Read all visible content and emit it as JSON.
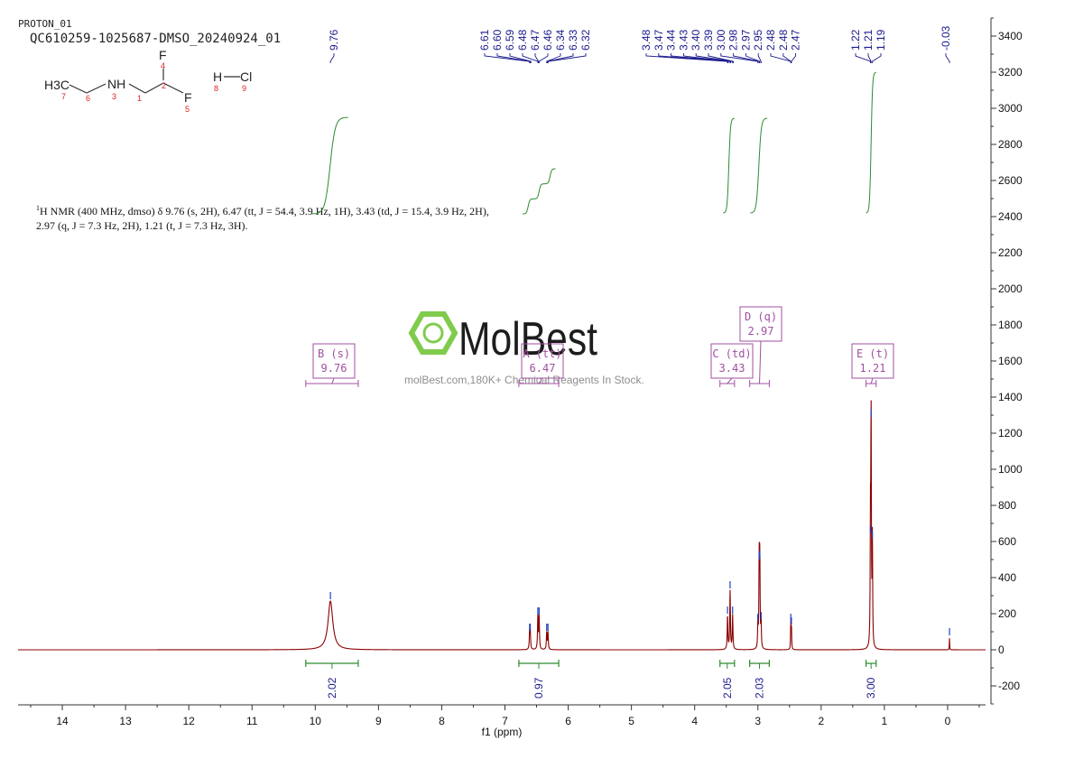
{
  "header": {
    "line1": "PROTON_01",
    "line2": "QC610259-1025687-DMSO_20240924_01"
  },
  "structure": {
    "atoms": {
      "h3c": "H3C",
      "nh": "NH",
      "f_top": "F",
      "f_bottom": "F",
      "h": "H",
      "cl": "Cl"
    },
    "atom_numbers": [
      "7",
      "6",
      "3",
      "1",
      "2",
      "4",
      "5",
      "8",
      "9"
    ]
  },
  "description": {
    "line1": "1H NMR (400 MHz, dmso) δ 9.76 (s, 2H), 6.47 (tt, J = 54.4, 3.9 Hz, 1H), 3.43 (td, J = 15.4, 3.9 Hz, 2H),",
    "line2": "2.97 (q, J = 7.3 Hz, 2H), 1.21 (t, J = 7.3 Hz, 3H)."
  },
  "watermark": {
    "brand": "MolBest",
    "tagline": "molBest.com,180K+ Chemical Reagents In Stock."
  },
  "colors": {
    "spectrum": "#8b0000",
    "integral": "#2e8b2e",
    "label": "#1a1a8c",
    "multiplet_box": "#a050a0",
    "logo_green": "#7ac943"
  },
  "chart_data": {
    "type": "line",
    "xlabel": "f1 (ppm)",
    "x_range": [
      14.7,
      -0.6
    ],
    "x_reversed": true,
    "y_range": [
      -300,
      3500
    ],
    "x_ticks": [
      14,
      13,
      12,
      11,
      10,
      9,
      8,
      7,
      6,
      5,
      4,
      3,
      2,
      1,
      0
    ],
    "y_ticks": [
      3400,
      3200,
      3000,
      2800,
      2600,
      2400,
      2200,
      2000,
      1800,
      1600,
      1400,
      1200,
      1000,
      800,
      600,
      400,
      200,
      0,
      -200
    ],
    "peaks": [
      {
        "ppm": 9.76,
        "height": 270,
        "width": 0.045
      },
      {
        "ppm": 6.61,
        "height": 95,
        "width": 0.006
      },
      {
        "ppm": 6.6,
        "height": 95,
        "width": 0.006
      },
      {
        "ppm": 6.48,
        "height": 185,
        "width": 0.006
      },
      {
        "ppm": 6.46,
        "height": 185,
        "width": 0.006
      },
      {
        "ppm": 6.34,
        "height": 95,
        "width": 0.006
      },
      {
        "ppm": 6.32,
        "height": 95,
        "width": 0.006
      },
      {
        "ppm": 3.48,
        "height": 190,
        "width": 0.006
      },
      {
        "ppm": 3.44,
        "height": 330,
        "width": 0.006
      },
      {
        "ppm": 3.4,
        "height": 190,
        "width": 0.006
      },
      {
        "ppm": 3.0,
        "height": 150,
        "width": 0.005
      },
      {
        "ppm": 2.98,
        "height": 490,
        "width": 0.005
      },
      {
        "ppm": 2.97,
        "height": 500,
        "width": 0.005
      },
      {
        "ppm": 2.95,
        "height": 160,
        "width": 0.005
      },
      {
        "ppm": 2.48,
        "height": 150,
        "width": 0.004
      },
      {
        "ppm": 2.47,
        "height": 130,
        "width": 0.004
      },
      {
        "ppm": 1.22,
        "height": 640,
        "width": 0.005
      },
      {
        "ppm": 1.21,
        "height": 1280,
        "width": 0.005
      },
      {
        "ppm": 1.19,
        "height": 610,
        "width": 0.005
      },
      {
        "ppm": -0.03,
        "height": 70,
        "width": 0.003
      }
    ],
    "peak_labels": [
      {
        "group": "a",
        "ppm_list": [
          "9.76"
        ]
      },
      {
        "group": "b",
        "ppm_list": [
          "6.61",
          "6.60",
          "6.59",
          "6.48",
          "6.47",
          "6.46",
          "6.34",
          "6.33",
          "6.32"
        ]
      },
      {
        "group": "c",
        "ppm_list": [
          "3.48",
          "3.47",
          "3.44",
          "3.43",
          "3.40",
          "3.39",
          "3.00",
          "2.98",
          "2.97",
          "2.95",
          "2.48",
          "2.48",
          "2.47"
        ]
      },
      {
        "group": "d",
        "ppm_list": [
          "1.22",
          "1.21",
          "1.19"
        ]
      },
      {
        "group": "e",
        "ppm_list": [
          "-0.03"
        ]
      }
    ],
    "multiplets": [
      {
        "letter": "B (s)",
        "shift": "9.76",
        "from": 10.15,
        "to": 9.32
      },
      {
        "letter": "A (tt)",
        "shift": "6.47",
        "from": 6.78,
        "to": 6.15
      },
      {
        "letter": "C (td)",
        "shift": "3.43",
        "from": 3.6,
        "to": 3.37
      },
      {
        "letter": "D (q)",
        "shift": "2.97",
        "from": 3.13,
        "to": 2.82
      },
      {
        "letter": "E (t)",
        "shift": "1.21",
        "from": 1.29,
        "to": 1.13
      }
    ],
    "integrals": [
      {
        "value": "2.02",
        "from": 10.15,
        "to": 9.32
      },
      {
        "value": "0.97",
        "from": 6.78,
        "to": 6.15
      },
      {
        "value": "2.05",
        "from": 3.6,
        "to": 3.37
      },
      {
        "value": "2.03",
        "from": 3.13,
        "to": 2.82
      },
      {
        "value": "3.00",
        "from": 1.29,
        "to": 1.13
      }
    ]
  }
}
